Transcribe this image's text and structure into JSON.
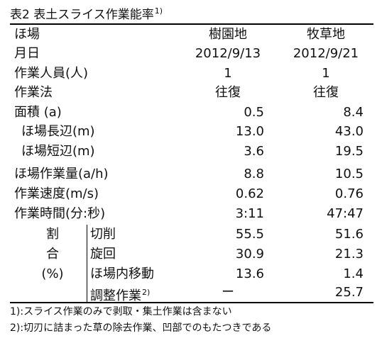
{
  "title": {
    "text": "表2 表土スライス作業能率",
    "note_mark": "1)"
  },
  "header": {
    "label": "ほ場",
    "col1": "樹園地",
    "col2": "牧草地"
  },
  "rows": [
    {
      "label": "月日",
      "col1": "2012/9/13",
      "col2": "2012/9/21"
    },
    {
      "label": "作業人員(人)",
      "col1": "1",
      "col2": "1"
    },
    {
      "label": "作業法",
      "col1": "往復",
      "col2": "往復"
    },
    {
      "label": "面積 (a)",
      "col1": "0.5",
      "col2": "8.4"
    },
    {
      "label": "ほ場長辺(m)",
      "col1": "13.0",
      "col2": "43.0"
    },
    {
      "label": "ほ場短辺(m)",
      "col1": "3.6",
      "col2": "19.5"
    },
    {
      "label": "ほ場作業量(a/h)",
      "col1": "8.8",
      "col2": "10.5"
    },
    {
      "label": "作業速度(m/s)",
      "col1": "0.62",
      "col2": "0.76"
    },
    {
      "label": "作業時間(分:秒)",
      "col1": "3:11",
      "col2": "47:47"
    }
  ],
  "ratio": {
    "side_labels": [
      "割",
      "合",
      "(%)"
    ],
    "rows": [
      {
        "label": "切削",
        "note_mark": "",
        "col1": "55.5",
        "col2": "51.6"
      },
      {
        "label": "旋回",
        "note_mark": "",
        "col1": "30.9",
        "col2": "21.3"
      },
      {
        "label": "ほ場内移動",
        "note_mark": "",
        "col1": "13.6",
        "col2": "1.4"
      },
      {
        "label": "調整作業",
        "note_mark": "2)",
        "col1": "ー",
        "col2": "25.7"
      }
    ]
  },
  "notes": [
    "1):スライス作業のみで剥取・集土作業は含まない",
    "2):切刃に詰まった草の除去作業、凹部でのもたつきである"
  ]
}
